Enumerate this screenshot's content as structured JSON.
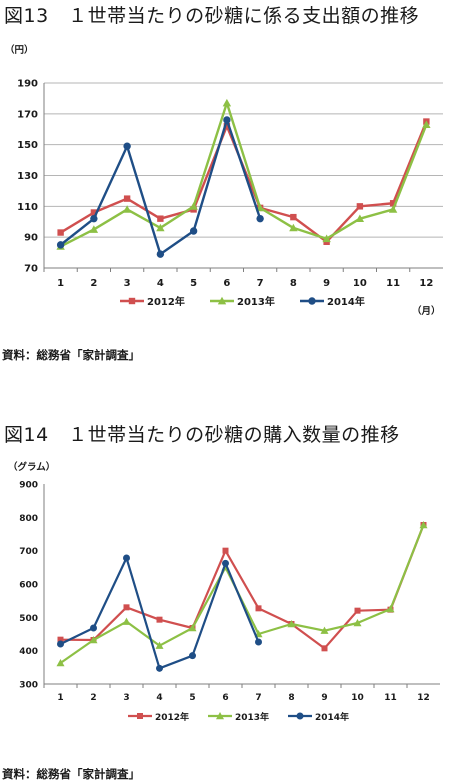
{
  "figures": {
    "fig13": {
      "title": "図13　１世帯当たりの砂糖に係る支出額の推移",
      "source": "資料：総務省「家計調査」"
    },
    "fig14": {
      "title": "図14　１世帯当たりの砂糖の購入数量の推移",
      "source": "資料：総務省「家計調査」"
    }
  },
  "colors": {
    "2012": "#d04f4f",
    "2013": "#8dc045",
    "2014": "#1f4e86"
  },
  "chart_data": [
    {
      "type": "line",
      "title": "",
      "ylabel": "（円）",
      "xlabel": "（月）",
      "categories": [
        "1",
        "2",
        "3",
        "4",
        "5",
        "6",
        "7",
        "8",
        "9",
        "10",
        "11",
        "12"
      ],
      "ylim": [
        70,
        190
      ],
      "yticks": [
        70,
        90,
        110,
        130,
        150,
        170,
        190
      ],
      "grid": true,
      "legend": "bottom",
      "series": [
        {
          "name": "2012年",
          "values": [
            93,
            106,
            115,
            102,
            108,
            162,
            109,
            103,
            87,
            110,
            112,
            165
          ]
        },
        {
          "name": "2013年",
          "values": [
            84,
            95,
            108,
            96,
            110,
            177,
            109,
            96,
            89,
            102,
            108,
            163
          ]
        },
        {
          "name": "2014年",
          "values": [
            85,
            102,
            149,
            79,
            94,
            166,
            102,
            null,
            null,
            null,
            null,
            null
          ]
        }
      ]
    },
    {
      "type": "line",
      "title": "",
      "ylabel": "（グラム）",
      "xlabel": "",
      "categories": [
        "1",
        "2",
        "3",
        "4",
        "5",
        "6",
        "7",
        "8",
        "9",
        "10",
        "11",
        "12"
      ],
      "ylim": [
        300,
        900
      ],
      "yticks": [
        300,
        400,
        500,
        600,
        700,
        800,
        900
      ],
      "grid": false,
      "legend": "bottom",
      "series": [
        {
          "name": "2012年",
          "values": [
            433,
            432,
            530,
            493,
            468,
            700,
            527,
            480,
            407,
            520,
            523,
            777
          ]
        },
        {
          "name": "2013年",
          "values": [
            363,
            432,
            487,
            415,
            468,
            650,
            450,
            480,
            460,
            483,
            525,
            777
          ]
        },
        {
          "name": "2014年",
          "values": [
            420,
            468,
            678,
            347,
            385,
            662,
            426,
            null,
            null,
            null,
            null,
            null
          ]
        }
      ]
    }
  ]
}
